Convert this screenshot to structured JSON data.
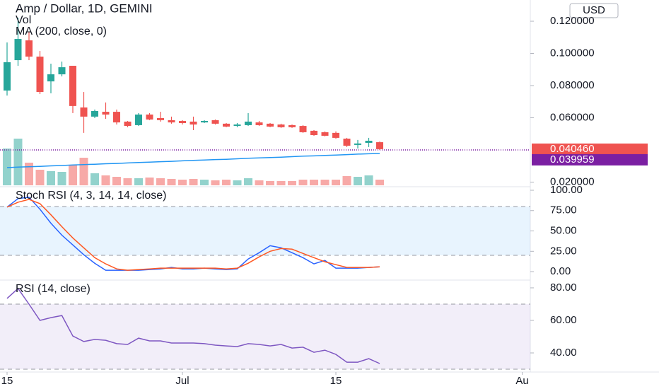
{
  "header": {
    "currency_button": "USD"
  },
  "chart_data": [
    {
      "type": "candlestick",
      "title": "Amp / Dollar, 1D, GEMINI",
      "x": [
        0,
        1,
        2,
        3,
        4,
        5,
        6,
        7,
        8,
        9,
        10,
        11,
        12,
        13,
        14,
        15,
        16,
        17,
        18,
        19,
        20,
        21,
        22,
        23,
        24,
        25,
        26,
        27,
        28,
        29,
        30,
        31,
        32,
        33,
        34
      ],
      "open": [
        0.0769,
        0.0958,
        0.1081,
        0.098,
        0.0826,
        0.087,
        0.0923,
        0.0664,
        0.0607,
        0.0637,
        0.0637,
        0.0576,
        0.0554,
        0.062,
        0.0598,
        0.0585,
        0.058,
        0.0576,
        0.0571,
        0.0585,
        0.0563,
        0.0549,
        0.0554,
        0.0571,
        0.0563,
        0.0558,
        0.0554,
        0.0549,
        0.0519,
        0.051,
        0.0506,
        0.047,
        0.0431,
        0.0444,
        0.0448
      ],
      "high": [
        0.1068,
        0.1222,
        0.1134,
        0.1015,
        0.0936,
        0.0949,
        0.0923,
        0.076,
        0.0651,
        0.0695,
        0.0651,
        0.058,
        0.0629,
        0.0629,
        0.0637,
        0.0607,
        0.0585,
        0.0607,
        0.0585,
        0.0589,
        0.0567,
        0.0567,
        0.0629,
        0.058,
        0.0567,
        0.0563,
        0.0558,
        0.0554,
        0.0523,
        0.0515,
        0.0515,
        0.0475,
        0.0462,
        0.0475,
        0.0452
      ],
      "low": [
        0.0738,
        0.0923,
        0.0958,
        0.0747,
        0.0752,
        0.0857,
        0.0629,
        0.0506,
        0.0598,
        0.0593,
        0.0558,
        0.0541,
        0.0549,
        0.0585,
        0.0576,
        0.0563,
        0.0558,
        0.0523,
        0.0567,
        0.0558,
        0.0541,
        0.0541,
        0.0549,
        0.0549,
        0.0541,
        0.0537,
        0.0537,
        0.0506,
        0.0488,
        0.0484,
        0.047,
        0.0418,
        0.0409,
        0.0418,
        0.04
      ],
      "close": [
        0.0945,
        0.109,
        0.098,
        0.076,
        0.087,
        0.0914,
        0.0673,
        0.0607,
        0.0642,
        0.062,
        0.0571,
        0.0549,
        0.062,
        0.0589,
        0.0585,
        0.0571,
        0.0567,
        0.0558,
        0.058,
        0.0563,
        0.0545,
        0.0558,
        0.0576,
        0.0554,
        0.0545,
        0.0541,
        0.0541,
        0.051,
        0.0492,
        0.0488,
        0.0475,
        0.0426,
        0.044,
        0.0457,
        0.04046
      ],
      "up_color": "#26a69a",
      "down_color": "#ef5350",
      "volume": {
        "name": "Vol",
        "values": [
          52,
          66,
          32,
          22,
          20,
          19,
          29,
          39,
          17,
          14,
          12,
          10,
          10,
          11,
          10,
          9,
          8,
          9,
          8,
          7,
          8,
          7,
          10,
          7,
          6,
          6,
          6,
          8,
          8,
          8,
          8,
          13,
          12,
          14,
          8
        ]
      },
      "ma": {
        "name": "MA (200, close, 0)",
        "color": "#2196f3",
        "values": [
          0.029,
          0.0293,
          0.0295,
          0.0298,
          0.0301,
          0.0303,
          0.0306,
          0.0309,
          0.0311,
          0.0314,
          0.0316,
          0.0319,
          0.0322,
          0.0324,
          0.0327,
          0.0329,
          0.0332,
          0.0335,
          0.0337,
          0.034,
          0.0342,
          0.0345,
          0.0348,
          0.035,
          0.0353,
          0.0355,
          0.0358,
          0.0361,
          0.0363,
          0.0366,
          0.0368,
          0.0371,
          0.0374,
          0.0376,
          0.0378
        ]
      },
      "last_price_label": "0.040460",
      "price_line": {
        "value": 0.039959,
        "label": "0.039959",
        "color": "#7b1fa2"
      },
      "xlim": [
        -0.645,
        47.74
      ],
      "xticks": [
        {
          "value": 0,
          "label": "15"
        },
        {
          "value": 16,
          "label": "Jul"
        },
        {
          "value": 30,
          "label": "15"
        },
        {
          "value": 47,
          "label": "Au"
        }
      ],
      "ylim": [
        0.018,
        0.1332
      ],
      "yticks": [
        {
          "value": 0.12,
          "label": "0.120000"
        },
        {
          "value": 0.1,
          "label": "0.100000"
        },
        {
          "value": 0.08,
          "label": "0.080000"
        },
        {
          "value": 0.06,
          "label": "0.060000"
        },
        {
          "value": 0.02,
          "label": "0.020000"
        }
      ]
    },
    {
      "type": "line",
      "title": "Stoch RSI (4, 3, 14, 14, close)",
      "series": [
        {
          "color": "#2962ff",
          "values": [
            79.3,
            89.7,
            91.4,
            76.7,
            59.5,
            44.8,
            32.8,
            20.7,
            10.3,
            1.7,
            1.7,
            1.7,
            1.7,
            2.6,
            3.4,
            5.2,
            3.4,
            3.4,
            4.3,
            3.4,
            2.6,
            3.4,
            15.5,
            23.3,
            31.9,
            29.3,
            23.3,
            17.2,
            9.5,
            13.8,
            4.3,
            4.3,
            4.3,
            5.2,
            6.0
          ]
        },
        {
          "color": "#ff5722",
          "values": [
            79.3,
            85.3,
            88.8,
            83.6,
            69.8,
            55.2,
            41.4,
            29.3,
            17.2,
            9.5,
            3.4,
            1.7,
            2.6,
            3.4,
            4.3,
            4.3,
            4.3,
            4.3,
            4.3,
            4.3,
            3.4,
            4.3,
            10.3,
            18.1,
            25.0,
            28.4,
            27.6,
            22.4,
            17.2,
            12.1,
            8.6,
            5.2,
            5.2,
            5.2,
            6.0
          ]
        }
      ],
      "band": [
        20,
        80
      ],
      "band_color": "#2196f3",
      "ylim": [
        -9.5,
        102.6
      ],
      "yticks": [
        {
          "value": 100,
          "label": "100.00"
        },
        {
          "value": 75,
          "label": "75.00"
        },
        {
          "value": 50,
          "label": "50.00"
        },
        {
          "value": 25,
          "label": "25.00"
        },
        {
          "value": 0,
          "label": "0.00"
        }
      ]
    },
    {
      "type": "line",
      "title": "RSI (14, close)",
      "series": [
        {
          "color": "#7e57c2",
          "values": [
            73.5,
            79.6,
            70.0,
            60.0,
            61.7,
            63.0,
            50.4,
            47.0,
            48.3,
            47.8,
            45.7,
            45.2,
            49.1,
            47.4,
            47.4,
            46.1,
            46.1,
            46.1,
            45.7,
            44.8,
            44.3,
            43.9,
            45.7,
            45.2,
            44.3,
            45.2,
            43.0,
            43.5,
            40.4,
            41.7,
            39.1,
            34.3,
            34.3,
            36.5,
            33.5
          ]
        }
      ],
      "band": [
        30,
        70
      ],
      "band_color": "#7e57c2",
      "ylim": [
        28.7,
        83.9
      ],
      "yticks": [
        {
          "value": 80,
          "label": "80.00"
        },
        {
          "value": 60,
          "label": "60.00"
        },
        {
          "value": 40,
          "label": "40.00"
        }
      ]
    }
  ]
}
